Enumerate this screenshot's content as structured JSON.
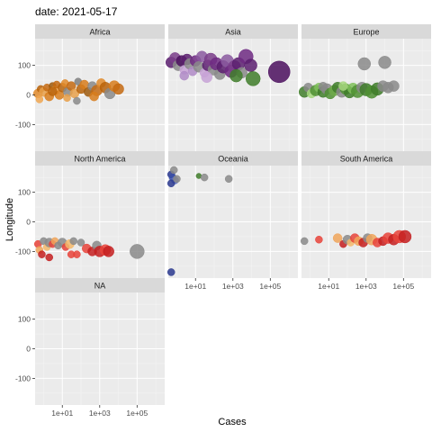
{
  "chart_data": {
    "type": "scatter",
    "title": "date: 2021-05-17",
    "xlabel": "Cases",
    "ylabel": "Longitude",
    "x_scale": "log10",
    "xlim": [
      0.35,
      3000000
    ],
    "ylim": [
      -190,
      190
    ],
    "x_ticks": [
      10,
      1000,
      100000
    ],
    "x_tick_labels": [
      "1e+01",
      "1e+03",
      "1e+05"
    ],
    "y_ticks": [
      -100,
      0,
      100
    ],
    "y_tick_labels": [
      "-100",
      "0",
      "100"
    ],
    "grid": true,
    "legend": "none",
    "facets": [
      {
        "name": "Africa",
        "points": [
          {
            "x": 0.5,
            "y": 5,
            "size": 5,
            "color": "#e08a2a"
          },
          {
            "x": 0.7,
            "y": 20,
            "size": 4,
            "color": "#b8630a"
          },
          {
            "x": 1,
            "y": 10,
            "size": 5,
            "color": "#e8a04a"
          },
          {
            "x": 1.5,
            "y": 25,
            "size": 4,
            "color": "#c46a12"
          },
          {
            "x": 2,
            "y": -5,
            "size": 5,
            "color": "#d77c1c"
          },
          {
            "x": 3,
            "y": 30,
            "size": 4,
            "color": "#9e5a0e"
          },
          {
            "x": 4,
            "y": 15,
            "size": 5,
            "color": "#f0a752"
          },
          {
            "x": 5,
            "y": 35,
            "size": 4,
            "color": "#c46a12"
          },
          {
            "x": 7,
            "y": 0,
            "size": 5,
            "color": "#d77c1c"
          },
          {
            "x": 10,
            "y": 25,
            "size": 5,
            "color": "#b8630a"
          },
          {
            "x": 14,
            "y": 40,
            "size": 4,
            "color": "#e08a2a"
          },
          {
            "x": 20,
            "y": 10,
            "size": 5,
            "color": "#8a8a8a"
          },
          {
            "x": 30,
            "y": 30,
            "size": 5,
            "color": "#c46a12"
          },
          {
            "x": 45,
            "y": 5,
            "size": 5,
            "color": "#e8a04a"
          },
          {
            "x": 70,
            "y": 45,
            "size": 4,
            "color": "#7f7f7f"
          },
          {
            "x": 100,
            "y": 20,
            "size": 5,
            "color": "#b8630a"
          },
          {
            "x": 150,
            "y": 35,
            "size": 5,
            "color": "#d77c1c"
          },
          {
            "x": 250,
            "y": 10,
            "size": 5,
            "color": "#9e5a0e"
          },
          {
            "x": 400,
            "y": 30,
            "size": 5,
            "color": "#8a8a8a"
          },
          {
            "x": 700,
            "y": 15,
            "size": 6,
            "color": "#c46a12"
          },
          {
            "x": 1200,
            "y": 40,
            "size": 5,
            "color": "#e08a2a"
          },
          {
            "x": 2000,
            "y": 25,
            "size": 6,
            "color": "#b8630a"
          },
          {
            "x": 3500,
            "y": 5,
            "size": 6,
            "color": "#8a8a8a"
          },
          {
            "x": 6000,
            "y": 30,
            "size": 6,
            "color": "#d77c1c"
          },
          {
            "x": 10000,
            "y": 20,
            "size": 6,
            "color": "#c46a12"
          },
          {
            "x": 0.6,
            "y": -15,
            "size": 4,
            "color": "#f0a752"
          },
          {
            "x": 60,
            "y": -20,
            "size": 4,
            "color": "#8a8a8a"
          },
          {
            "x": 3,
            "y": 12,
            "size": 5,
            "color": "#b8630a"
          },
          {
            "x": 18,
            "y": -10,
            "size": 4,
            "color": "#e8a04a"
          },
          {
            "x": 500,
            "y": -5,
            "size": 5,
            "color": "#d77c1c"
          }
        ]
      },
      {
        "name": "Asia",
        "points": [
          {
            "x": 0.5,
            "y": 110,
            "size": 6,
            "color": "#5b1f6e"
          },
          {
            "x": 0.8,
            "y": 125,
            "size": 6,
            "color": "#7a3d8a"
          },
          {
            "x": 1.2,
            "y": 100,
            "size": 6,
            "color": "#8a8a8a"
          },
          {
            "x": 1.8,
            "y": 115,
            "size": 6,
            "color": "#4b0f5e"
          },
          {
            "x": 2.5,
            "y": 85,
            "size": 5,
            "color": "#c7a2d6"
          },
          {
            "x": 3.5,
            "y": 120,
            "size": 6,
            "color": "#5b1f6e"
          },
          {
            "x": 5,
            "y": 105,
            "size": 6,
            "color": "#8a8a8a"
          },
          {
            "x": 7,
            "y": 80,
            "size": 5,
            "color": "#b08bc7"
          },
          {
            "x": 10,
            "y": 115,
            "size": 6,
            "color": "#6e2a82"
          },
          {
            "x": 15,
            "y": 95,
            "size": 6,
            "color": "#8a8a8a"
          },
          {
            "x": 22,
            "y": 130,
            "size": 6,
            "color": "#8b5aa0"
          },
          {
            "x": 30,
            "y": 75,
            "size": 5,
            "color": "#c7a2d6"
          },
          {
            "x": 45,
            "y": 100,
            "size": 6,
            "color": "#5b1f6e"
          },
          {
            "x": 65,
            "y": 120,
            "size": 7,
            "color": "#7a3d8a"
          },
          {
            "x": 90,
            "y": 85,
            "size": 6,
            "color": "#8a8a8a"
          },
          {
            "x": 130,
            "y": 105,
            "size": 7,
            "color": "#6e2a82"
          },
          {
            "x": 200,
            "y": 70,
            "size": 6,
            "color": "#8a8a8a"
          },
          {
            "x": 300,
            "y": 95,
            "size": 7,
            "color": "#5b1f6e"
          },
          {
            "x": 500,
            "y": 115,
            "size": 7,
            "color": "#8b5aa0"
          },
          {
            "x": 800,
            "y": 80,
            "size": 7,
            "color": "#6e2a82"
          },
          {
            "x": 1200,
            "y": 95,
            "size": 7,
            "color": "#7a3d8a"
          },
          {
            "x": 2000,
            "y": 105,
            "size": 7,
            "color": "#5b1f6e"
          },
          {
            "x": 3000,
            "y": 75,
            "size": 6,
            "color": "#8a8a8a"
          },
          {
            "x": 5000,
            "y": 130,
            "size": 8,
            "color": "#6e2a82"
          },
          {
            "x": 9000,
            "y": 100,
            "size": 7,
            "color": "#5b1f6e"
          },
          {
            "x": 300000,
            "y": 78,
            "size": 12,
            "color": "#4b0f5e"
          },
          {
            "x": 1500,
            "y": 65,
            "size": 7,
            "color": "#3f7d2a"
          },
          {
            "x": 12000,
            "y": 55,
            "size": 8,
            "color": "#3f7d2a"
          },
          {
            "x": 40,
            "y": 60,
            "size": 6,
            "color": "#c7a2d6"
          },
          {
            "x": 2.5,
            "y": 65,
            "size": 5,
            "color": "#b08bc7"
          }
        ]
      },
      {
        "name": "Europe",
        "points": [
          {
            "x": 0.5,
            "y": 10,
            "size": 6,
            "color": "#3f7d2a"
          },
          {
            "x": 0.8,
            "y": 25,
            "size": 5,
            "color": "#8a8a8a"
          },
          {
            "x": 1.2,
            "y": 5,
            "size": 5,
            "color": "#a6d77e"
          },
          {
            "x": 2,
            "y": 15,
            "size": 6,
            "color": "#4f8f33"
          },
          {
            "x": 3,
            "y": 25,
            "size": 5,
            "color": "#7fbf5a"
          },
          {
            "x": 5,
            "y": 10,
            "size": 6,
            "color": "#3f7d2a"
          },
          {
            "x": 8,
            "y": 20,
            "size": 6,
            "color": "#8a8a8a"
          },
          {
            "x": 12,
            "y": 5,
            "size": 6,
            "color": "#4f8f33"
          },
          {
            "x": 20,
            "y": 15,
            "size": 6,
            "color": "#6faa4a"
          },
          {
            "x": 30,
            "y": 25,
            "size": 6,
            "color": "#3f7d2a"
          },
          {
            "x": 50,
            "y": 10,
            "size": 6,
            "color": "#8a8a8a"
          },
          {
            "x": 80,
            "y": 20,
            "size": 6,
            "color": "#4f8f33"
          },
          {
            "x": 130,
            "y": 8,
            "size": 6,
            "color": "#3f7d2a"
          },
          {
            "x": 200,
            "y": 22,
            "size": 6,
            "color": "#7fbf5a"
          },
          {
            "x": 350,
            "y": 12,
            "size": 7,
            "color": "#4f8f33"
          },
          {
            "x": 600,
            "y": 25,
            "size": 6,
            "color": "#8a8a8a"
          },
          {
            "x": 1000,
            "y": 18,
            "size": 7,
            "color": "#3f7d2a"
          },
          {
            "x": 2000,
            "y": 10,
            "size": 7,
            "color": "#4f8f33"
          },
          {
            "x": 4000,
            "y": 20,
            "size": 7,
            "color": "#3f7d2a"
          },
          {
            "x": 8000,
            "y": 30,
            "size": 6,
            "color": "#8a8a8a"
          },
          {
            "x": 15000,
            "y": 25,
            "size": 6,
            "color": "#8a8a8a"
          },
          {
            "x": 30000,
            "y": 30,
            "size": 6,
            "color": "#8a8a8a"
          },
          {
            "x": 800,
            "y": 105,
            "size": 7,
            "color": "#8a8a8a"
          },
          {
            "x": 10000,
            "y": 110,
            "size": 7,
            "color": "#8a8a8a"
          },
          {
            "x": 60,
            "y": 30,
            "size": 5,
            "color": "#a6d77e"
          },
          {
            "x": 5,
            "y": 28,
            "size": 5,
            "color": "#8a8a8a"
          }
        ]
      },
      {
        "name": "North America",
        "points": [
          {
            "x": 0.5,
            "y": -75,
            "size": 4,
            "color": "#e8433a"
          },
          {
            "x": 0.6,
            "y": -95,
            "size": 4,
            "color": "#f0a45a"
          },
          {
            "x": 0.8,
            "y": -110,
            "size": 4,
            "color": "#c41e20"
          },
          {
            "x": 1,
            "y": -65,
            "size": 4,
            "color": "#8a8a8a"
          },
          {
            "x": 1.5,
            "y": -85,
            "size": 4,
            "color": "#f5b86a"
          },
          {
            "x": 2,
            "y": -70,
            "size": 5,
            "color": "#8a8a8a"
          },
          {
            "x": 3,
            "y": -75,
            "size": 4,
            "color": "#e8433a"
          },
          {
            "x": 4,
            "y": -65,
            "size": 4,
            "color": "#f0a45a"
          },
          {
            "x": 6,
            "y": -80,
            "size": 4,
            "color": "#8a8a8a"
          },
          {
            "x": 10,
            "y": -70,
            "size": 5,
            "color": "#8a8a8a"
          },
          {
            "x": 15,
            "y": -85,
            "size": 4,
            "color": "#e8433a"
          },
          {
            "x": 25,
            "y": -75,
            "size": 5,
            "color": "#f5b86a"
          },
          {
            "x": 40,
            "y": -65,
            "size": 4,
            "color": "#8a8a8a"
          },
          {
            "x": 60,
            "y": -110,
            "size": 4,
            "color": "#e8433a"
          },
          {
            "x": 100,
            "y": -70,
            "size": 4,
            "color": "#8a8a8a"
          },
          {
            "x": 200,
            "y": -90,
            "size": 5,
            "color": "#e8433a"
          },
          {
            "x": 400,
            "y": -100,
            "size": 5,
            "color": "#c41e20"
          },
          {
            "x": 700,
            "y": -80,
            "size": 5,
            "color": "#8a8a8a"
          },
          {
            "x": 1000,
            "y": -100,
            "size": 6,
            "color": "#c41e20"
          },
          {
            "x": 2000,
            "y": -95,
            "size": 6,
            "color": "#e8433a"
          },
          {
            "x": 3000,
            "y": -100,
            "size": 6,
            "color": "#c41e20"
          },
          {
            "x": 100000,
            "y": -100,
            "size": 8,
            "color": "#8a8a8a"
          },
          {
            "x": 2,
            "y": -120,
            "size": 4,
            "color": "#c41e20"
          },
          {
            "x": 30,
            "y": -110,
            "size": 4,
            "color": "#e8433a"
          }
        ]
      },
      {
        "name": "Oceania",
        "points": [
          {
            "x": 0.5,
            "y": 160,
            "size": 4,
            "color": "#2b3a8f"
          },
          {
            "x": 0.6,
            "y": 150,
            "size": 4,
            "color": "#3a4fa8"
          },
          {
            "x": 0.8,
            "y": 140,
            "size": 4,
            "color": "#5a6fc0"
          },
          {
            "x": 0.5,
            "y": 130,
            "size": 4,
            "color": "#2b3a8f"
          },
          {
            "x": 1,
            "y": 145,
            "size": 4,
            "color": "#8a8a8a"
          },
          {
            "x": 0.7,
            "y": 175,
            "size": 4,
            "color": "#8a8a8a"
          },
          {
            "x": 15,
            "y": 155,
            "size": 3,
            "color": "#3f7d2a"
          },
          {
            "x": 30,
            "y": 150,
            "size": 4,
            "color": "#8a8a8a"
          },
          {
            "x": 600,
            "y": 145,
            "size": 4,
            "color": "#8a8a8a"
          },
          {
            "x": 0.5,
            "y": -170,
            "size": 4,
            "color": "#2b3a8f"
          }
        ]
      },
      {
        "name": "South America",
        "points": [
          {
            "x": 0.5,
            "y": -65,
            "size": 4,
            "color": "#8a8a8a"
          },
          {
            "x": 3,
            "y": -60,
            "size": 4,
            "color": "#e8433a"
          },
          {
            "x": 30,
            "y": -55,
            "size": 5,
            "color": "#f0a45a"
          },
          {
            "x": 60,
            "y": -75,
            "size": 4,
            "color": "#c41e20"
          },
          {
            "x": 100,
            "y": -60,
            "size": 5,
            "color": "#8a8a8a"
          },
          {
            "x": 150,
            "y": -70,
            "size": 4,
            "color": "#f5b86a"
          },
          {
            "x": 250,
            "y": -55,
            "size": 5,
            "color": "#e8433a"
          },
          {
            "x": 400,
            "y": -65,
            "size": 5,
            "color": "#f0a45a"
          },
          {
            "x": 700,
            "y": -70,
            "size": 5,
            "color": "#c41e20"
          },
          {
            "x": 1200,
            "y": -55,
            "size": 5,
            "color": "#8a8a8a"
          },
          {
            "x": 2000,
            "y": -60,
            "size": 6,
            "color": "#f0a45a"
          },
          {
            "x": 4000,
            "y": -70,
            "size": 5,
            "color": "#e8433a"
          },
          {
            "x": 8000,
            "y": -65,
            "size": 5,
            "color": "#c41e20"
          },
          {
            "x": 15000,
            "y": -55,
            "size": 6,
            "color": "#e8433a"
          },
          {
            "x": 30000,
            "y": -60,
            "size": 6,
            "color": "#c41e20"
          },
          {
            "x": 60000,
            "y": -50,
            "size": 7,
            "color": "#e8433a"
          },
          {
            "x": 120000,
            "y": -50,
            "size": 7,
            "color": "#c41e20"
          }
        ]
      },
      {
        "name": "NA",
        "points": []
      }
    ]
  }
}
